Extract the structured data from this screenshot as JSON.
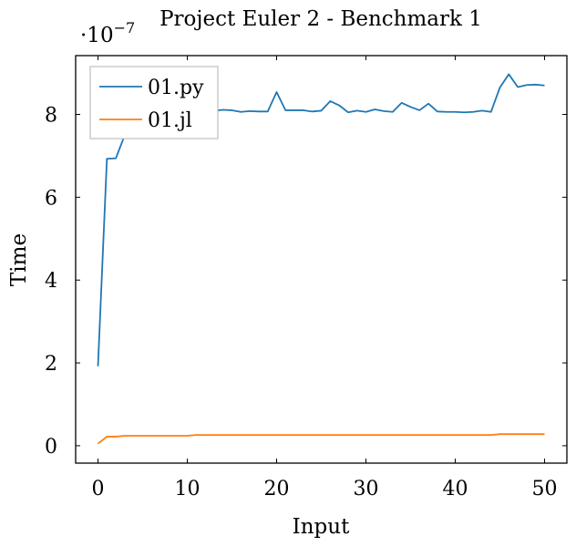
{
  "chart_data": {
    "type": "line",
    "title": "Project Euler 2 - Benchmark 1",
    "xlabel": "Input",
    "ylabel": "Time",
    "y_scale_base": "·10",
    "y_scale_exponent": "−7",
    "xlim": [
      -2.5,
      52.5
    ],
    "ylim": [
      -0.42,
      9.42
    ],
    "x_ticks": [
      0,
      10,
      20,
      30,
      40,
      50
    ],
    "y_ticks": [
      0,
      2,
      4,
      6,
      8
    ],
    "grid": false,
    "legend_position": "top-left",
    "x": [
      0,
      1,
      2,
      3,
      4,
      5,
      6,
      7,
      8,
      9,
      10,
      11,
      12,
      13,
      14,
      15,
      16,
      17,
      18,
      19,
      20,
      21,
      22,
      23,
      24,
      25,
      26,
      27,
      28,
      29,
      30,
      31,
      32,
      33,
      34,
      35,
      36,
      37,
      38,
      39,
      40,
      41,
      42,
      43,
      44,
      45,
      46,
      47,
      48,
      49,
      50
    ],
    "series": [
      {
        "name": "01.py",
        "color": "#1f77b4",
        "values": [
          1.92,
          6.93,
          6.94,
          7.5,
          7.85,
          8.0,
          8.05,
          8.08,
          8.1,
          8.1,
          8.11,
          8.1,
          8.1,
          8.09,
          8.11,
          8.1,
          8.06,
          8.08,
          8.07,
          8.07,
          8.54,
          8.1,
          8.1,
          8.1,
          8.07,
          8.09,
          8.32,
          8.22,
          8.05,
          8.09,
          8.06,
          8.12,
          8.08,
          8.06,
          8.28,
          8.18,
          8.1,
          8.26,
          8.07,
          8.06,
          8.06,
          8.05,
          8.06,
          8.09,
          8.06,
          8.65,
          8.97,
          8.66,
          8.71,
          8.72,
          8.7
        ]
      },
      {
        "name": "01.jl",
        "color": "#ff7f0e",
        "values": [
          0.05,
          0.22,
          0.22,
          0.24,
          0.24,
          0.24,
          0.24,
          0.24,
          0.24,
          0.24,
          0.24,
          0.26,
          0.26,
          0.26,
          0.26,
          0.26,
          0.26,
          0.26,
          0.26,
          0.26,
          0.26,
          0.26,
          0.26,
          0.26,
          0.26,
          0.26,
          0.26,
          0.26,
          0.26,
          0.26,
          0.26,
          0.26,
          0.26,
          0.26,
          0.26,
          0.26,
          0.26,
          0.26,
          0.26,
          0.26,
          0.26,
          0.26,
          0.26,
          0.26,
          0.26,
          0.28,
          0.28,
          0.28,
          0.28,
          0.28,
          0.28
        ]
      }
    ]
  }
}
